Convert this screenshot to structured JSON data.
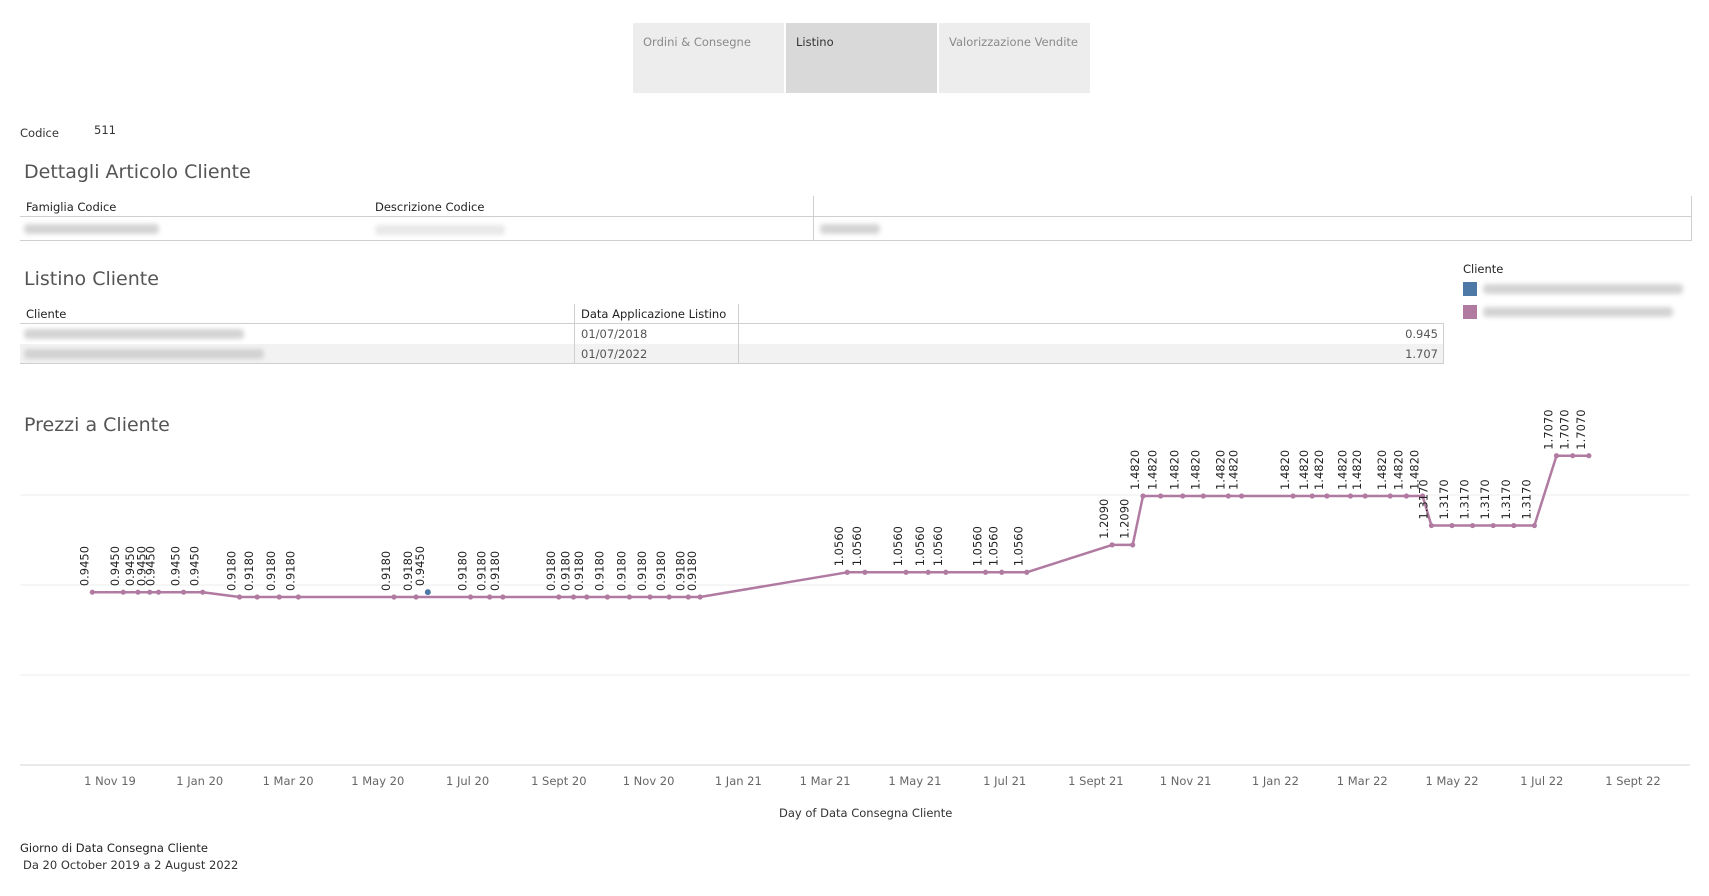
{
  "tabs": [
    {
      "label": "Ordini & Consegne",
      "active": false
    },
    {
      "label": "Listino",
      "active": true
    },
    {
      "label": "Valorizzazione Vendite",
      "active": false
    }
  ],
  "codice": {
    "label": "Codice",
    "value": "511"
  },
  "dettagli": {
    "title": "Dettagli Articolo Cliente",
    "headers": [
      "Famiglia Codice",
      "Descrizione Codice"
    ]
  },
  "listino": {
    "title": "Listino Cliente",
    "headers": [
      "Cliente",
      "Data Applicazione Listino"
    ],
    "rows": [
      {
        "data": "01/07/2018",
        "value": "0.945"
      },
      {
        "data": "01/07/2022",
        "value": "1.707"
      }
    ]
  },
  "legend": {
    "title": "Cliente",
    "colors": [
      "#4e79a7",
      "#b07aa1"
    ]
  },
  "chart_section": {
    "title": "Prezzi a Cliente"
  },
  "chart_data": {
    "type": "line",
    "xlabel": "Day of Data Consegna Cliente",
    "x_ticks": [
      "1 Nov 19",
      "1 Jan 20",
      "1 Mar 20",
      "1 May 20",
      "1 Jul 20",
      "1 Sept 20",
      "1 Nov 20",
      "1 Jan 21",
      "1 Mar 21",
      "1 May 21",
      "1 Jul 21",
      "1 Sept 21",
      "1 Nov 21",
      "1 Jan 22",
      "1 Mar 22",
      "1 May 22",
      "1 Jul 22",
      "1 Sept 22"
    ],
    "x_range": [
      "2019-10-01",
      "2022-09-01"
    ],
    "series": [
      {
        "color": "#b07aa1",
        "points": [
          [
            "2019-10-20",
            0.945
          ],
          [
            "2019-11-10",
            0.945
          ],
          [
            "2019-11-20",
            0.945
          ],
          [
            "2019-11-28",
            0.945
          ],
          [
            "2019-12-04",
            0.945
          ],
          [
            "2019-12-21",
            0.945
          ],
          [
            "2020-01-03",
            0.945
          ],
          [
            "2020-01-28",
            0.918
          ],
          [
            "2020-02-09",
            0.918
          ],
          [
            "2020-02-24",
            0.918
          ],
          [
            "2020-03-08",
            0.918
          ],
          [
            "2020-05-12",
            0.918
          ],
          [
            "2020-05-27",
            0.918
          ],
          [
            "2020-07-03",
            0.918
          ],
          [
            "2020-07-16",
            0.918
          ],
          [
            "2020-07-25",
            0.918
          ],
          [
            "2020-09-01",
            0.918
          ],
          [
            "2020-09-11",
            0.918
          ],
          [
            "2020-09-20",
            0.918
          ],
          [
            "2020-10-04",
            0.918
          ],
          [
            "2020-10-19",
            0.918
          ],
          [
            "2020-11-02",
            0.918
          ],
          [
            "2020-11-15",
            0.918
          ],
          [
            "2020-11-28",
            0.918
          ],
          [
            "2020-12-06",
            0.918
          ],
          [
            "2021-03-16",
            1.056
          ],
          [
            "2021-03-28",
            1.056
          ],
          [
            "2021-04-25",
            1.056
          ],
          [
            "2021-05-10",
            1.056
          ],
          [
            "2021-05-22",
            1.056
          ],
          [
            "2021-06-18",
            1.056
          ],
          [
            "2021-06-29",
            1.056
          ],
          [
            "2021-07-16",
            1.056
          ],
          [
            "2021-09-12",
            1.209
          ],
          [
            "2021-09-26",
            1.209
          ],
          [
            "2021-10-03",
            1.482
          ],
          [
            "2021-10-15",
            1.482
          ],
          [
            "2021-10-30",
            1.482
          ],
          [
            "2021-11-13",
            1.482
          ],
          [
            "2021-11-30",
            1.482
          ],
          [
            "2021-12-09",
            1.482
          ],
          [
            "2022-01-13",
            1.482
          ],
          [
            "2022-01-26",
            1.482
          ],
          [
            "2022-02-05",
            1.482
          ],
          [
            "2022-02-21",
            1.482
          ],
          [
            "2022-03-03",
            1.482
          ],
          [
            "2022-03-20",
            1.482
          ],
          [
            "2022-03-31",
            1.482
          ],
          [
            "2022-04-11",
            1.482
          ],
          [
            "2022-04-17",
            1.317
          ],
          [
            "2022-05-01",
            1.317
          ],
          [
            "2022-05-15",
            1.317
          ],
          [
            "2022-05-29",
            1.317
          ],
          [
            "2022-06-12",
            1.317
          ],
          [
            "2022-06-26",
            1.317
          ],
          [
            "2022-07-11",
            1.707
          ],
          [
            "2022-07-22",
            1.707
          ],
          [
            "2022-08-02",
            1.707
          ]
        ]
      },
      {
        "color": "#4e79a7",
        "points": [
          [
            "2020-06-04",
            0.945
          ]
        ]
      }
    ],
    "labels": [
      [
        "2019-10-20",
        "0.9450"
      ],
      [
        "2019-11-10",
        "0.9450"
      ],
      [
        "2019-11-20",
        "0.9450"
      ],
      [
        "2019-11-28",
        "0.9450"
      ],
      [
        "2019-12-04",
        "0.9450"
      ],
      [
        "2019-12-21",
        "0.9450"
      ],
      [
        "2020-01-03",
        "0.9450"
      ],
      [
        "2020-01-28",
        "0.9180"
      ],
      [
        "2020-02-09",
        "0.9180"
      ],
      [
        "2020-02-24",
        "0.9180"
      ],
      [
        "2020-03-08",
        "0.9180"
      ],
      [
        "2020-05-12",
        "0.9180"
      ],
      [
        "2020-05-27",
        "0.9180"
      ],
      [
        "2020-06-04",
        "0.9450"
      ],
      [
        "2020-07-03",
        "0.9180"
      ],
      [
        "2020-07-16",
        "0.9180"
      ],
      [
        "2020-07-25",
        "0.9180"
      ],
      [
        "2020-09-01",
        "0.9180"
      ],
      [
        "2020-09-11",
        "0.9180"
      ],
      [
        "2020-09-20",
        "0.9180"
      ],
      [
        "2020-10-04",
        "0.9180"
      ],
      [
        "2020-10-19",
        "0.9180"
      ],
      [
        "2020-11-02",
        "0.9180"
      ],
      [
        "2020-11-15",
        "0.9180"
      ],
      [
        "2020-11-28",
        "0.9180"
      ],
      [
        "2020-12-06",
        "0.9180"
      ],
      [
        "2021-03-16",
        "1.0560"
      ],
      [
        "2021-03-28",
        "1.0560"
      ],
      [
        "2021-04-25",
        "1.0560"
      ],
      [
        "2021-05-10",
        "1.0560"
      ],
      [
        "2021-05-22",
        "1.0560"
      ],
      [
        "2021-06-18",
        "1.0560"
      ],
      [
        "2021-06-29",
        "1.0560"
      ],
      [
        "2021-07-16",
        "1.0560"
      ],
      [
        "2021-09-12",
        "1.2090"
      ],
      [
        "2021-09-26",
        "1.2090"
      ],
      [
        "2021-10-03",
        "1.4820"
      ],
      [
        "2021-10-15",
        "1.4820"
      ],
      [
        "2021-10-30",
        "1.4820"
      ],
      [
        "2021-11-13",
        "1.4820"
      ],
      [
        "2021-11-30",
        "1.4820"
      ],
      [
        "2021-12-09",
        "1.4820"
      ],
      [
        "2022-01-13",
        "1.4820"
      ],
      [
        "2022-01-26",
        "1.4820"
      ],
      [
        "2022-02-05",
        "1.4820"
      ],
      [
        "2022-02-21",
        "1.4820"
      ],
      [
        "2022-03-03",
        "1.4820"
      ],
      [
        "2022-03-20",
        "1.4820"
      ],
      [
        "2022-03-31",
        "1.4820"
      ],
      [
        "2022-04-11",
        "1.4820"
      ],
      [
        "2022-04-17",
        "1.3170"
      ],
      [
        "2022-05-01",
        "1.3170"
      ],
      [
        "2022-05-15",
        "1.3170"
      ],
      [
        "2022-05-29",
        "1.3170"
      ],
      [
        "2022-06-12",
        "1.3170"
      ],
      [
        "2022-06-26",
        "1.3170"
      ],
      [
        "2022-07-11",
        "1.7070"
      ],
      [
        "2022-07-22",
        "1.7070"
      ],
      [
        "2022-08-02",
        "1.7070"
      ]
    ],
    "grid": true
  },
  "filter": {
    "title": "Giorno di Data Consegna Cliente",
    "range_text": "Da 20 October 2019 a 2 August 2022"
  }
}
